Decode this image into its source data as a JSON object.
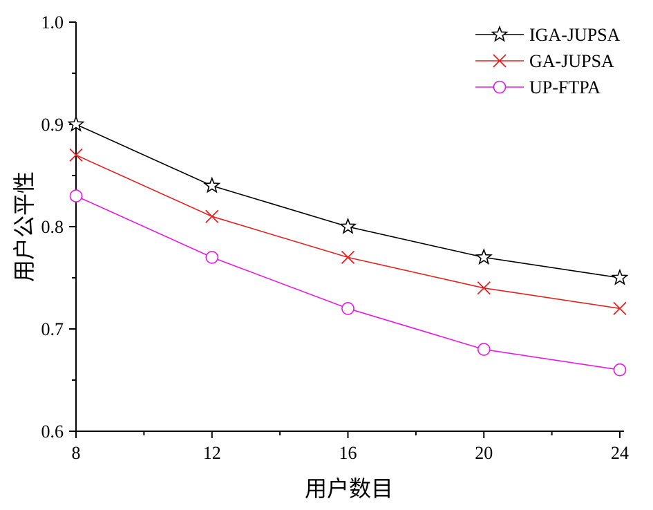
{
  "chart_data": {
    "type": "line",
    "xlabel": "用户数目",
    "ylabel": "用户公平性",
    "x": [
      8,
      12,
      16,
      20,
      24
    ],
    "xlim": [
      8,
      24
    ],
    "ylim": [
      0.6,
      1.0
    ],
    "x_ticks": [
      8,
      12,
      16,
      20,
      24
    ],
    "x_tick_labels": [
      "8",
      "12",
      "16",
      "20",
      "24"
    ],
    "y_ticks": [
      0.6,
      0.7,
      0.8,
      0.9,
      1.0
    ],
    "y_tick_labels": [
      "0.6",
      "0.7",
      "0.8",
      "0.9",
      "1.0"
    ],
    "grid": false,
    "legend_position": "top-right",
    "series": [
      {
        "name": "IGA-JUPSA",
        "values": [
          0.9,
          0.84,
          0.8,
          0.77,
          0.75
        ],
        "color": "#000000",
        "marker": "star-open"
      },
      {
        "name": "GA-JUPSA",
        "values": [
          0.87,
          0.81,
          0.77,
          0.74,
          0.72
        ],
        "color": "#e32222",
        "marker": "x"
      },
      {
        "name": "UP-FTPA",
        "values": [
          0.83,
          0.77,
          0.72,
          0.68,
          0.66
        ],
        "color": "#e619e6",
        "marker": "circle-open"
      }
    ]
  }
}
